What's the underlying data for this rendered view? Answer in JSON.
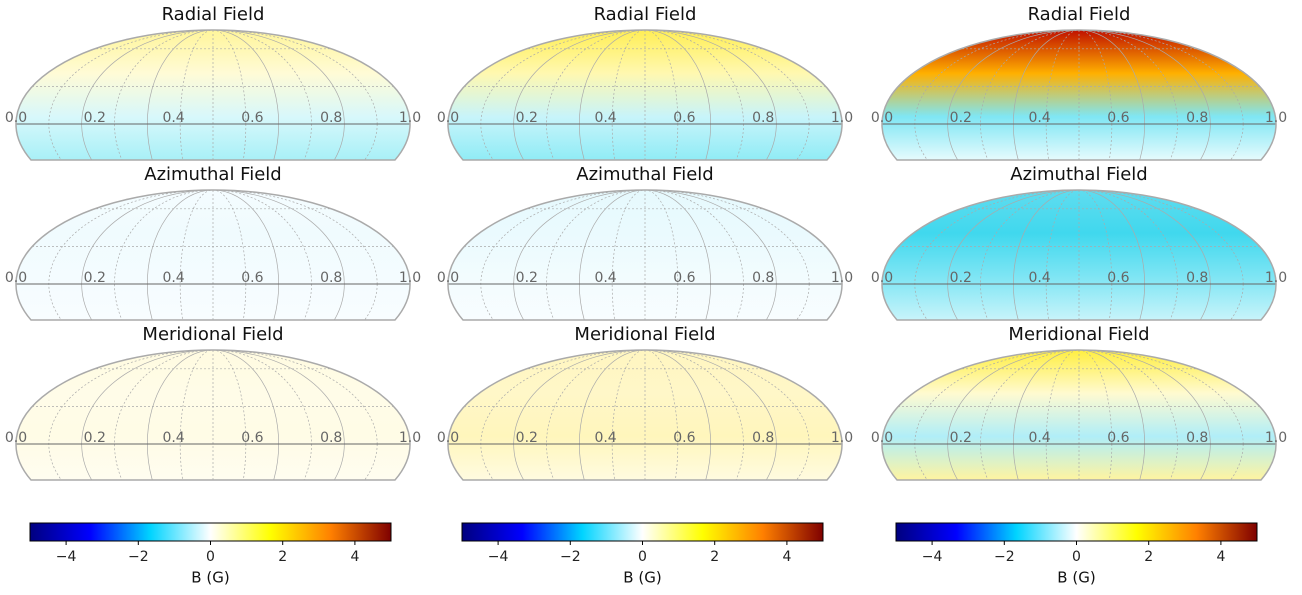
{
  "chart_data": [
    {
      "type": "map",
      "title": "Radial Field",
      "xlim": [
        0,
        1
      ],
      "xticks": [
        {
          "value": 0,
          "label": "0.0"
        },
        0.2,
        0.4,
        0.6,
        0.8,
        {
          "value": 1,
          "label": "1.0"
        }
      ],
      "colors": [
        "#fff59a",
        "#fffbd6",
        "#d8f8fb",
        "#a8f0f7"
      ]
    },
    {
      "type": "map",
      "title": "Radial Field",
      "xlim": [
        0,
        1
      ],
      "xticks": [
        {
          "value": 0,
          "label": "0.0"
        },
        0.2,
        0.4,
        0.6,
        0.8,
        {
          "value": 1,
          "label": "1.0"
        }
      ],
      "colors": [
        "#ffee55",
        "#fff8b0",
        "#c8f4fa",
        "#90ecf6"
      ]
    },
    {
      "type": "map",
      "title": "Radial Field",
      "xlim": [
        0,
        1
      ],
      "xticks": [
        {
          "value": 0,
          "label": "0.0"
        },
        0.2,
        0.4,
        0.6,
        0.8,
        {
          "value": 1,
          "label": "1.0"
        }
      ],
      "colors": [
        "#c01000",
        "#ffb000",
        "#7fe6f4",
        "#e6fbfd"
      ]
    },
    {
      "type": "map",
      "title": "Azimuthal Field",
      "xlim": [
        0,
        1
      ],
      "xticks": [
        {
          "value": 0,
          "label": "0.0"
        },
        0.2,
        0.4,
        0.6,
        0.8,
        {
          "value": 1,
          "label": "1.0"
        }
      ],
      "colors": [
        "#f4fcff",
        "#f0fbfe",
        "#f4fcff",
        "#f8fdff"
      ]
    },
    {
      "type": "map",
      "title": "Azimuthal Field",
      "xlim": [
        0,
        1
      ],
      "xticks": [
        {
          "value": 0,
          "label": "0.0"
        },
        0.2,
        0.4,
        0.6,
        0.8,
        {
          "value": 1,
          "label": "1.0"
        }
      ],
      "colors": [
        "#e6f9fd",
        "#eafafe",
        "#f2fcfe",
        "#f8fdff"
      ]
    },
    {
      "type": "map",
      "title": "Azimuthal Field",
      "xlim": [
        0,
        1
      ],
      "xticks": [
        {
          "value": 0,
          "label": "0.0"
        },
        0.2,
        0.4,
        0.6,
        0.8,
        {
          "value": 1,
          "label": "1.0"
        }
      ],
      "colors": [
        "#60dcef",
        "#40d8ee",
        "#7ee5f4",
        "#c8f4fa"
      ]
    },
    {
      "type": "map",
      "title": "Meridional Field",
      "xlim": [
        0,
        1
      ],
      "xticks": [
        {
          "value": 0,
          "label": "0.0"
        },
        0.2,
        0.4,
        0.6,
        0.8,
        {
          "value": 1,
          "label": "1.0"
        }
      ],
      "colors": [
        "#fffbe0",
        "#fffce8",
        "#fffce6",
        "#fffdf0"
      ]
    },
    {
      "type": "map",
      "title": "Meridional Field",
      "xlim": [
        0,
        1
      ],
      "xticks": [
        {
          "value": 0,
          "label": "0.0"
        },
        0.2,
        0.4,
        0.6,
        0.8,
        {
          "value": 1,
          "label": "1.0"
        }
      ],
      "colors": [
        "#fff6c0",
        "#fff7c8",
        "#fff6bc",
        "#fffbe0"
      ]
    },
    {
      "type": "map",
      "title": "Meridional Field",
      "xlim": [
        0,
        1
      ],
      "xticks": [
        {
          "value": 0,
          "label": "0.0"
        },
        0.2,
        0.4,
        0.6,
        0.8,
        {
          "value": 1,
          "label": "1.0"
        }
      ],
      "colors": [
        "#ffee40",
        "#fffad0",
        "#b0eef8",
        "#fff4a0"
      ]
    },
    {
      "type": "colorbar",
      "xlabel": "B (G)",
      "xlim": [
        -5,
        5
      ],
      "xticks": [
        {
          "value": -4,
          "label": "−4"
        },
        {
          "value": -2,
          "label": "−2"
        },
        0,
        2,
        4
      ],
      "colormap": [
        "#00007f",
        "#0000ff",
        "#00d4ff",
        "#ffffff",
        "#ffff00",
        "#ff8000",
        "#7f0000"
      ]
    },
    {
      "type": "colorbar",
      "xlabel": "B (G)",
      "xlim": [
        -5,
        5
      ],
      "xticks": [
        {
          "value": -4,
          "label": "−4"
        },
        {
          "value": -2,
          "label": "−2"
        },
        0,
        2,
        4
      ],
      "colormap": [
        "#00007f",
        "#0000ff",
        "#00d4ff",
        "#ffffff",
        "#ffff00",
        "#ff8000",
        "#7f0000"
      ]
    },
    {
      "type": "colorbar",
      "xlabel": "B (G)",
      "xlim": [
        -5,
        5
      ],
      "xticks": [
        {
          "value": -4,
          "label": "−4"
        },
        {
          "value": -2,
          "label": "−2"
        },
        0,
        2,
        4
      ],
      "colormap": [
        "#00007f",
        "#0000ff",
        "#00d4ff",
        "#ffffff",
        "#ffff00",
        "#ff8000",
        "#7f0000"
      ]
    }
  ]
}
